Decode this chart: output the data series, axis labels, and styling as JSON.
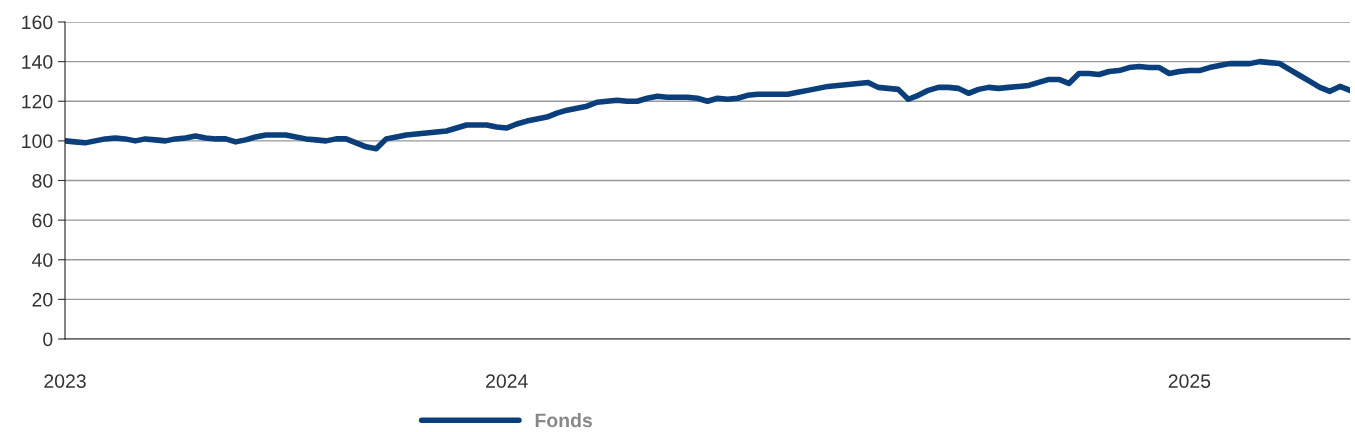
{
  "chart_data": {
    "type": "line",
    "categories": [
      "2023",
      null,
      null,
      null,
      null,
      null,
      null,
      null,
      null,
      null,
      null,
      null,
      null,
      null,
      null,
      null,
      null,
      null,
      null,
      null,
      null,
      null,
      null,
      null,
      null,
      null,
      null,
      null,
      null,
      null,
      null,
      null,
      null,
      null,
      null,
      null,
      null,
      null,
      null,
      null,
      null,
      null,
      null,
      null,
      "2024",
      null,
      null,
      null,
      null,
      null,
      null,
      null,
      null,
      null,
      null,
      null,
      null,
      null,
      null,
      null,
      null,
      null,
      null,
      null,
      null,
      null,
      null,
      null,
      null,
      null,
      null,
      null,
      null,
      null,
      null,
      null,
      null,
      null,
      null,
      null,
      null,
      null,
      null,
      null,
      null,
      null,
      null,
      null,
      null,
      null,
      null,
      null,
      null,
      null,
      null,
      null,
      null,
      null,
      null,
      null,
      null,
      null,
      null,
      null,
      null,
      null,
      null,
      null,
      null,
      null,
      null,
      null,
      "2025",
      null,
      null,
      null,
      null,
      null,
      null,
      null,
      null,
      null,
      null,
      null,
      null,
      null,
      null,
      null,
      null
    ],
    "series": [
      {
        "name": "Fonds",
        "color": "#0a3f7c",
        "values": [
          100,
          99.5,
          99,
          100,
          101,
          101.5,
          101,
          100,
          101,
          100.5,
          100,
          101,
          101.5,
          102.5,
          101.5,
          101,
          101,
          99.5,
          100.5,
          102,
          103,
          103,
          103,
          102,
          101,
          100.5,
          100,
          101,
          101,
          99,
          97,
          96,
          101,
          102,
          103,
          103.5,
          104,
          104.5,
          105,
          106.5,
          108,
          108,
          108,
          107,
          106.5,
          108.5,
          110,
          111,
          112,
          114,
          115.5,
          116.5,
          117.5,
          119.5,
          120,
          120.5,
          120,
          120,
          121.5,
          122.5,
          122,
          122,
          122,
          121.5,
          120,
          121.5,
          121,
          121.5,
          123,
          123.5,
          123.5,
          123.5,
          123.5,
          124.5,
          125.5,
          126.5,
          127.5,
          128,
          128.5,
          129,
          129.5,
          127,
          126.5,
          126,
          121,
          123,
          125.5,
          127,
          127,
          126.5,
          124,
          126,
          127,
          126.5,
          127,
          127.5,
          128,
          129.5,
          131,
          131,
          129,
          134,
          134,
          133.5,
          135,
          135.5,
          137,
          137.5,
          137,
          137,
          134,
          135,
          135.5,
          135.5,
          137,
          138,
          139,
          139,
          139,
          140,
          139.5,
          139,
          136,
          133,
          130,
          127,
          125,
          127.5,
          125.5
        ]
      }
    ],
    "ylim": [
      0,
      160
    ],
    "yticks": [
      0,
      20,
      40,
      60,
      80,
      100,
      120,
      140,
      160
    ],
    "grid": "y",
    "legend": "bottom",
    "marker": "none",
    "line_style": "solid"
  }
}
